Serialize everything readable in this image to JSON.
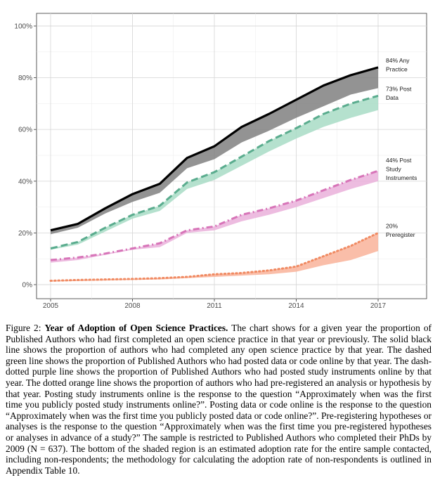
{
  "chart_data": {
    "type": "line",
    "x": [
      2005,
      2006,
      2007,
      2008,
      2009,
      2010,
      2011,
      2012,
      2013,
      2014,
      2015,
      2016,
      2017
    ],
    "xticks": [
      2005,
      2008,
      2011,
      2014,
      2017
    ],
    "xlim": [
      2005,
      2017
    ],
    "ylim": [
      0,
      100
    ],
    "yticks": [
      0,
      20,
      40,
      60,
      80,
      100
    ],
    "ytick_labels": [
      "0%",
      "20%",
      "40%",
      "60%",
      "80%",
      "100%"
    ],
    "grid": true,
    "series": [
      {
        "key": "any",
        "color": "#000000",
        "fill": "#808080",
        "dash": "solid",
        "label_lines": [
          "84% Any",
          "Practice"
        ],
        "values": [
          21,
          23.5,
          29.5,
          35,
          39,
          49,
          53.5,
          61,
          66,
          71.5,
          77,
          81,
          84
        ],
        "lower": [
          19.5,
          22,
          27.5,
          32,
          35.5,
          45,
          48.5,
          55,
          59.5,
          64.5,
          69,
          73.5,
          76
        ]
      },
      {
        "key": "data",
        "color": "#5aac8e",
        "fill": "#a8dcc6",
        "dash": "dashed",
        "label_lines": [
          "73% Post",
          "Data"
        ],
        "values": [
          14,
          16.5,
          22,
          27,
          30.5,
          39.5,
          43.5,
          49.5,
          55.5,
          60.5,
          66,
          70,
          73
        ],
        "lower": [
          13.5,
          15.5,
          20.5,
          25.5,
          28.5,
          37,
          40.5,
          46,
          51.5,
          56.5,
          61,
          64.5,
          67.5
        ]
      },
      {
        "key": "instruments",
        "color": "#d774b8",
        "fill": "#eab0da",
        "dash": "dashdot",
        "label_lines": [
          "44% Post",
          "Study",
          "Instruments"
        ],
        "values": [
          9.5,
          10.5,
          12,
          14,
          16,
          21,
          22.5,
          27,
          29.5,
          32.5,
          36.5,
          40.5,
          44
        ],
        "lower": [
          8.5,
          9.5,
          11.5,
          13.5,
          14.5,
          20,
          21,
          24.5,
          27,
          30,
          33.5,
          37,
          40
        ]
      },
      {
        "key": "preregister",
        "color": "#f08a62",
        "fill": "#f9b39a",
        "dash": "dotted",
        "label_lines": [
          "20%",
          "Preregister"
        ],
        "values": [
          1.5,
          1.8,
          2,
          2.2,
          2.5,
          3,
          4,
          4.5,
          5.5,
          7,
          11,
          15,
          20
        ],
        "lower": [
          1.2,
          1.4,
          1.6,
          1.8,
          2,
          2.5,
          3,
          3.5,
          4,
          5,
          7.5,
          9.5,
          13
        ]
      }
    ]
  },
  "caption": {
    "label": "Figure 2:",
    "title": "Year of Adoption of Open Science Practices.",
    "body": "The chart shows for a given year the proportion of Published Authors who had first completed an open science practice in that year or previously. The solid black line shows the proportion of authors who had completed any open science practice by that year. The dashed green line shows the proportion of Published Authors who had posted data or code online by that year. The dash-dotted purple line shows the proportion of Published Authors who had posted study instruments online by that year. The dotted orange line shows the proportion of authors who had pre-registered an analysis or hypothesis by that year. Posting study instruments online is the response to the question “Approximately when was the first time you publicly posted study instruments online?”. Posting data or code online is the response to the question “Approximately when was the first time you publicly posted data or code online?”. Pre-registering hypotheses or analyses is the response to the question “Approximately when was the first time you pre-registered hypotheses or analyses in advance of a study?” The sample is restricted to Published Authors who completed their PhDs by 2009 (N = 637). The bottom of the shaded region is an estimated adoption rate for the entire sample contacted, including non-respondents; the methodology for calculating the adoption rate of non-respondents is outlined in Appendix Table 10."
  }
}
